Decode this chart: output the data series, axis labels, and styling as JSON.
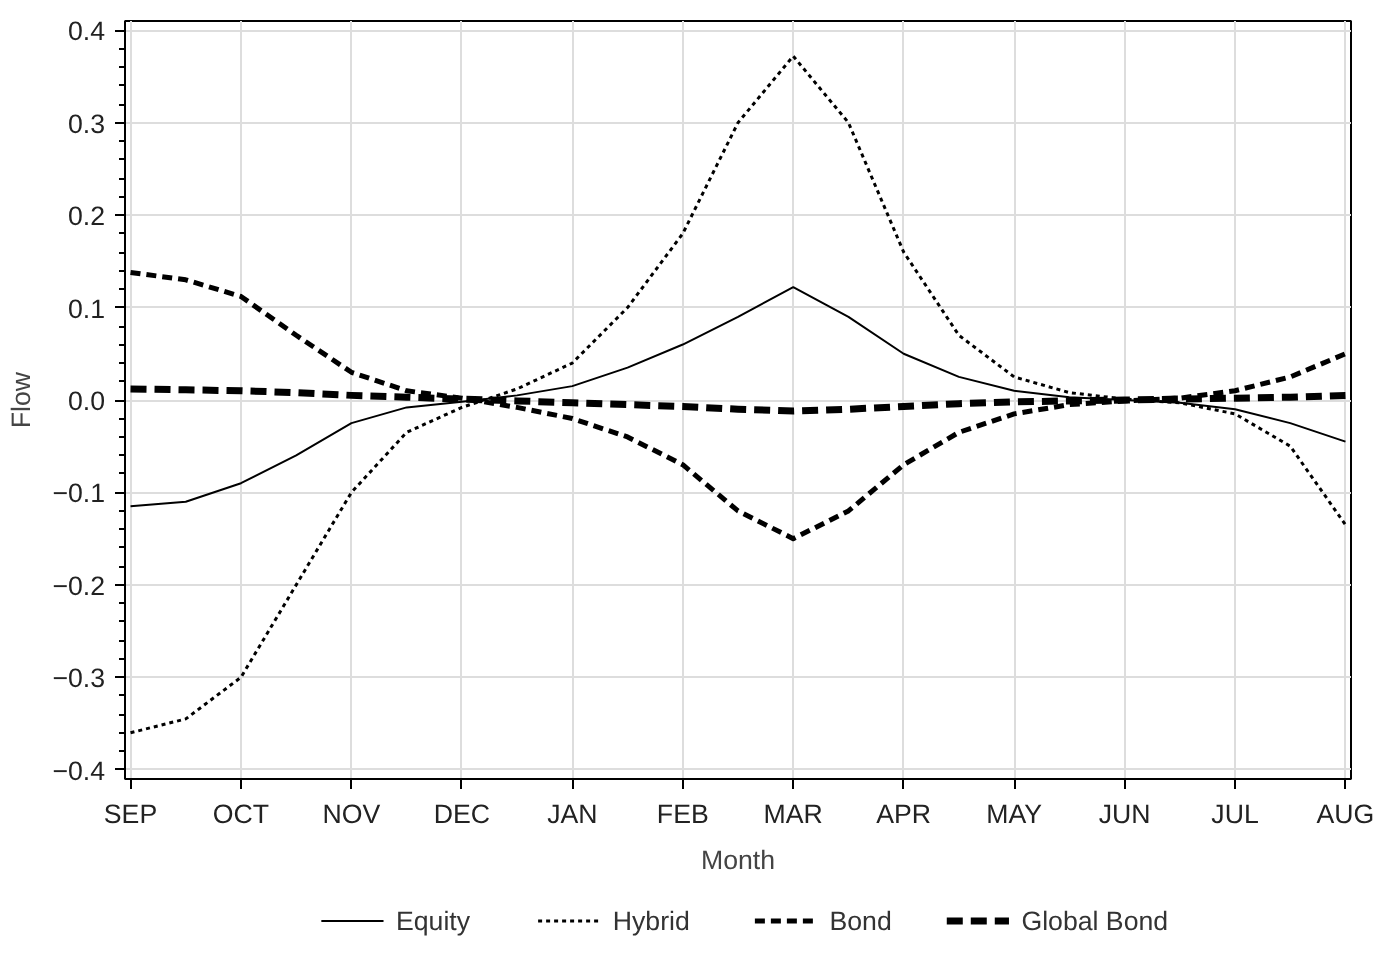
{
  "chart_data": {
    "type": "line",
    "xlabel": "Month",
    "ylabel": "Flow",
    "categories": [
      "SEP",
      null,
      "OCT",
      null,
      "NOV",
      null,
      "DEC",
      null,
      "JAN",
      null,
      "FEB",
      null,
      "MAR",
      null,
      "APR",
      null,
      "MAY",
      null,
      "JUN",
      null,
      "JUL",
      null,
      "AUG"
    ],
    "ylim": [
      -0.41,
      0.41
    ],
    "yticks": [
      {
        "value": -0.4,
        "label": "−0.4"
      },
      {
        "value": -0.3,
        "label": "−0.3"
      },
      {
        "value": -0.2,
        "label": "−0.2"
      },
      {
        "value": -0.1,
        "label": "−0.1"
      },
      {
        "value": 0,
        "label": "0.0"
      },
      {
        "value": 0.1,
        "label": "0.1"
      },
      {
        "value": 0.2,
        "label": "0.2"
      },
      {
        "value": 0.3,
        "label": "0.3"
      },
      {
        "value": 0.4,
        "label": "0.4"
      }
    ],
    "grid": true,
    "legend": "bottom",
    "series": [
      {
        "name": "Equity",
        "color": "#000000",
        "line_style": "solid",
        "values": [
          -0.115,
          -0.11,
          -0.09,
          -0.06,
          -0.025,
          -0.008,
          -0.002,
          0.005,
          0.015,
          0.035,
          0.06,
          0.09,
          0.122,
          0.09,
          0.05,
          0.025,
          0.01,
          0.003,
          0,
          -0.003,
          -0.01,
          -0.025,
          -0.045
        ]
      },
      {
        "name": "Hybrid",
        "color": "#000000",
        "line_style": "dotted",
        "values": [
          -0.36,
          -0.345,
          -0.3,
          -0.2,
          -0.1,
          -0.035,
          -0.008,
          0.012,
          0.04,
          0.1,
          0.18,
          0.3,
          0.372,
          0.3,
          0.16,
          0.07,
          0.025,
          0.008,
          0.001,
          -0.003,
          -0.015,
          -0.05,
          -0.135
        ]
      },
      {
        "name": "Bond",
        "color": "#000000",
        "line_style": "dashed",
        "values": [
          0.138,
          0.13,
          0.112,
          0.07,
          0.03,
          0.01,
          0.002,
          -0.008,
          -0.02,
          -0.04,
          -0.07,
          -0.12,
          -0.15,
          -0.12,
          -0.07,
          -0.035,
          -0.015,
          -0.005,
          -0.001,
          0.002,
          0.01,
          0.025,
          0.05
        ]
      },
      {
        "name": "Global Bond",
        "color": "#000000",
        "line_style": "longdash",
        "values": [
          0.012,
          0.011,
          0.01,
          0.008,
          0.005,
          0.003,
          0.001,
          -0.001,
          -0.003,
          -0.005,
          -0.007,
          -0.01,
          -0.012,
          -0.01,
          -0.007,
          -0.004,
          -0.002,
          -0.001,
          0,
          0.001,
          0.002,
          0.003,
          0.005
        ]
      }
    ]
  }
}
